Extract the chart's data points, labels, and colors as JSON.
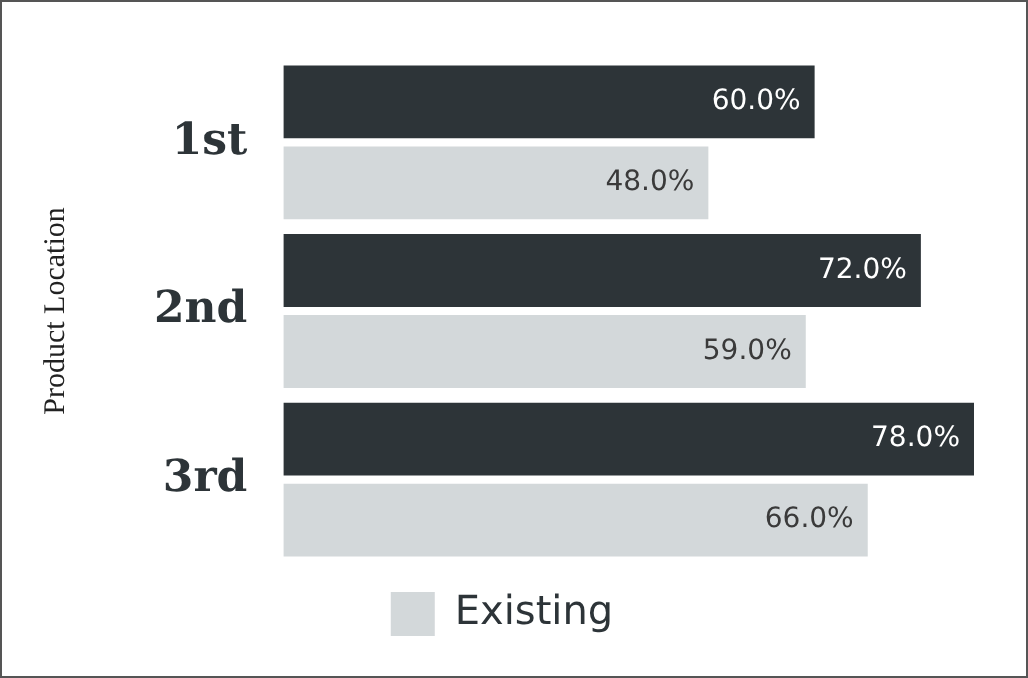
{
  "chart_data": {
    "type": "bar",
    "orientation": "horizontal",
    "ylabel": "Product Location",
    "categories": [
      "1st",
      "2nd",
      "3rd"
    ],
    "series": [
      {
        "color": "#2d3438",
        "values": [
          60,
          72,
          78
        ],
        "value_labels": [
          "60.0%",
          "72.0%",
          "78.0%"
        ]
      },
      {
        "name": "Existing",
        "color": "#d3d8da",
        "values": [
          48,
          59,
          66
        ],
        "value_labels": [
          "48.0%",
          "59.0%",
          "66.0%"
        ]
      }
    ],
    "legend": "bottom"
  }
}
